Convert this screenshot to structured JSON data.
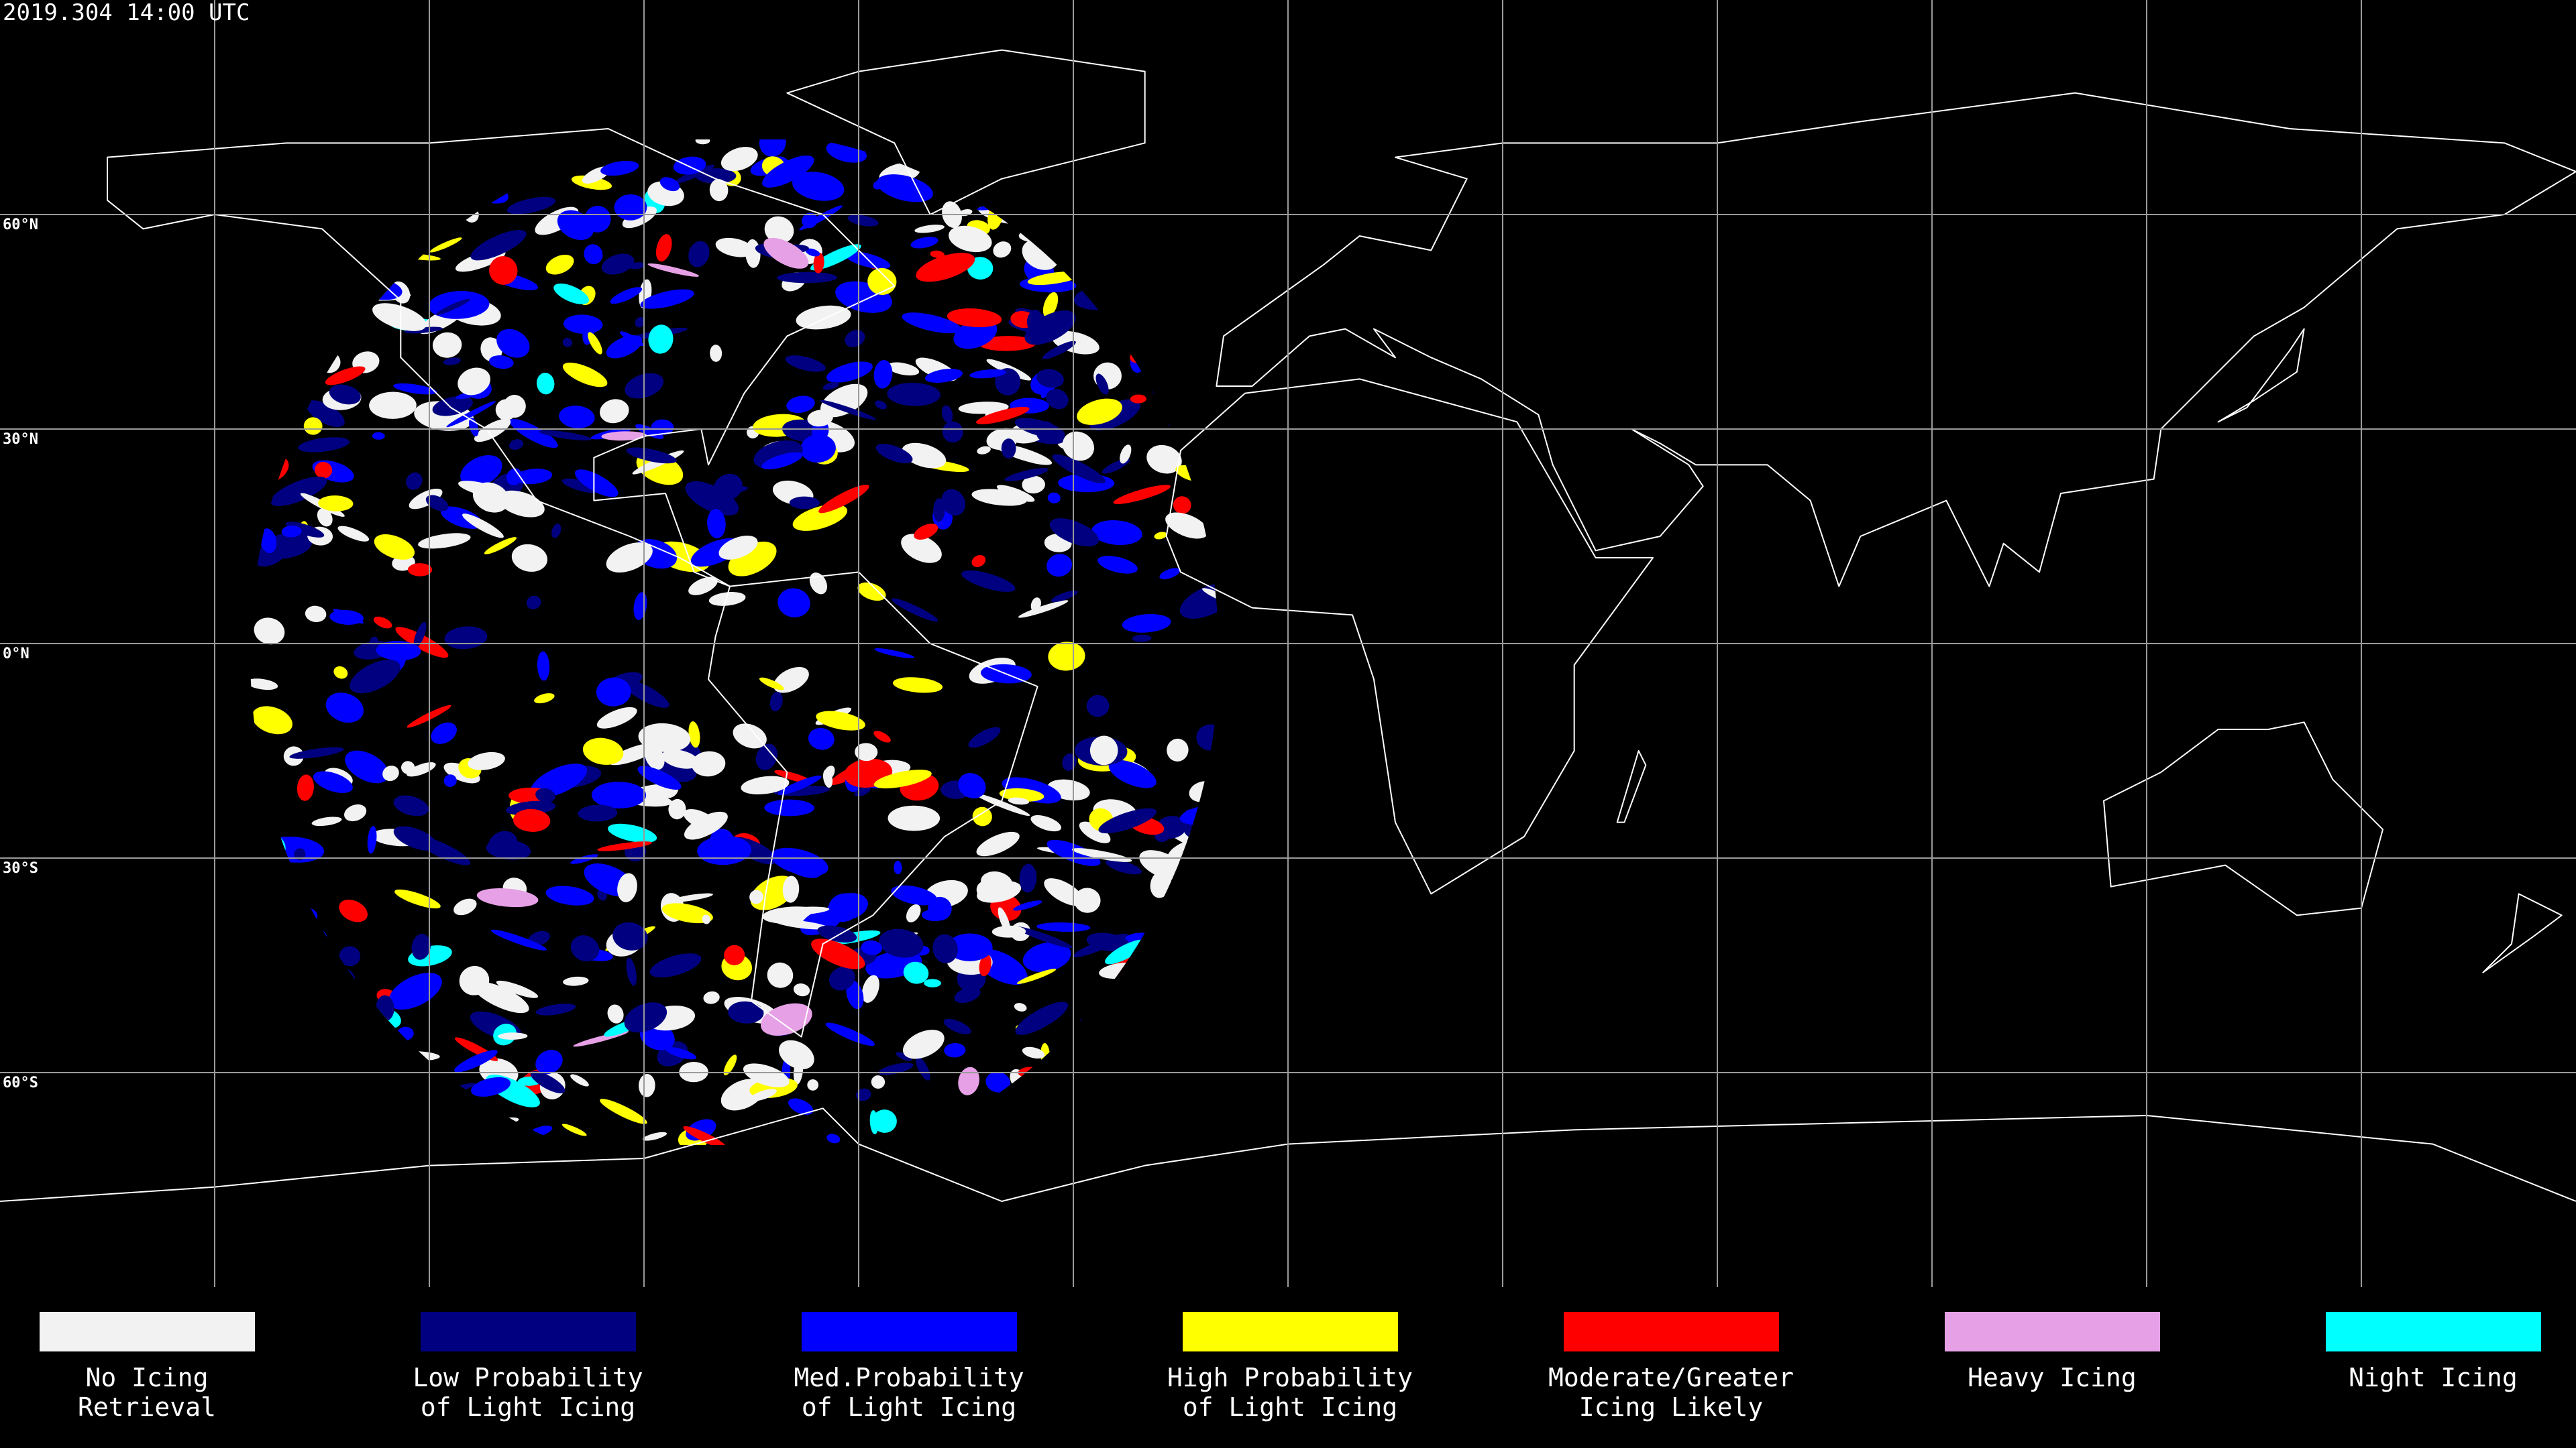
{
  "header": {
    "title": "2019.304 14:00 UTC"
  },
  "map": {
    "lat_labels": [
      "60°N",
      "30°N",
      "0°N",
      "30°S",
      "60°S"
    ]
  },
  "legend": {
    "items": [
      {
        "label": [
          "No Icing",
          "Retrieval"
        ],
        "color": "#f2f2f2"
      },
      {
        "label": [
          "Low Probability",
          "of Light Icing"
        ],
        "color": "#000080"
      },
      {
        "label": [
          "Med.Probability",
          "of Light Icing"
        ],
        "color": "#0000ff"
      },
      {
        "label": [
          "High Probability",
          "of Light Icing"
        ],
        "color": "#ffff00"
      },
      {
        "label": [
          "Moderate/Greater",
          "Icing Likely"
        ],
        "color": "#ff0000"
      },
      {
        "label": [
          "Heavy Icing"
        ],
        "color": "#e6a0e6"
      },
      {
        "label": [
          "Night Icing"
        ],
        "color": "#00ffff"
      }
    ]
  }
}
